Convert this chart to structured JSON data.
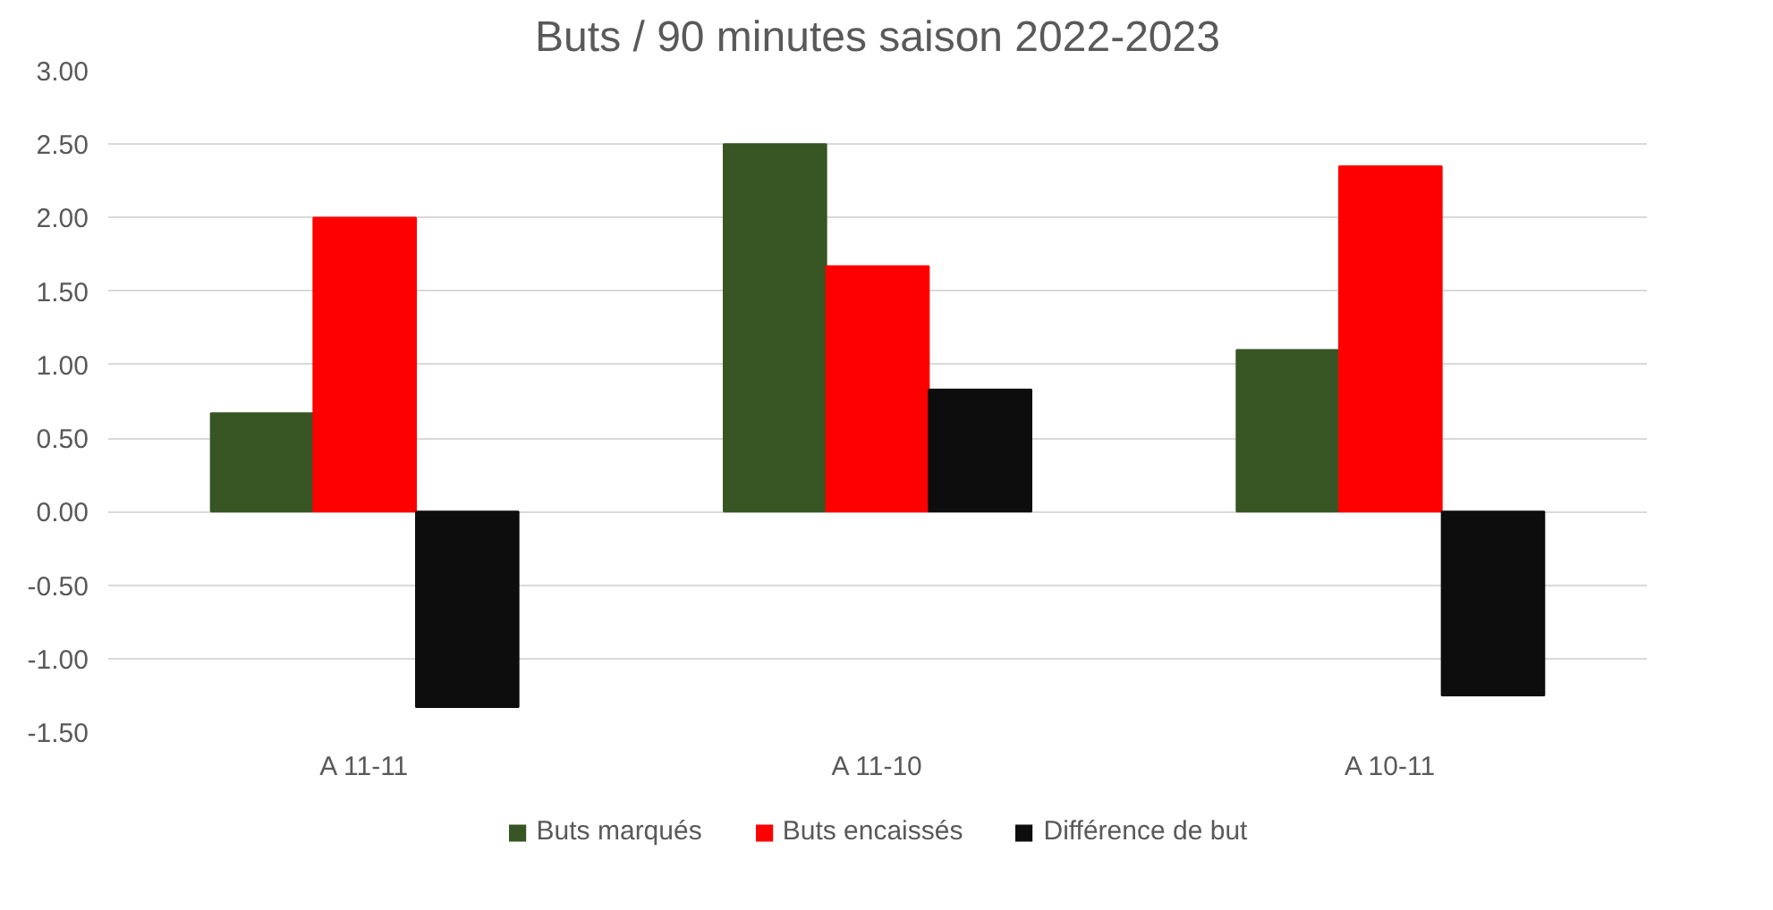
{
  "chart_data": {
    "type": "bar",
    "title": "Buts / 90 minutes saison 2022-2023",
    "categories": [
      "A 11-11",
      "A 11-10",
      "A 10-11"
    ],
    "series": [
      {
        "name": "Buts marqués",
        "color": "#375623",
        "values": [
          0.67,
          2.5,
          1.1
        ]
      },
      {
        "name": "Buts encaissés",
        "color": "#ff0000",
        "values": [
          2.0,
          1.67,
          2.35
        ]
      },
      {
        "name": "Différence de but",
        "color": "#0d0d0d",
        "values": [
          -1.33,
          0.83,
          -1.25
        ]
      }
    ],
    "ylim": [
      -1.5,
      3.0
    ],
    "yticks": [
      {
        "value": -1.5,
        "label": "-1.50"
      },
      {
        "value": -1.0,
        "label": "-1.00"
      },
      {
        "value": -0.5,
        "label": "-0.50"
      },
      {
        "value": 0,
        "label": "0.00"
      },
      {
        "value": 0.5,
        "label": "0.50"
      },
      {
        "value": 1.0,
        "label": "1.00"
      },
      {
        "value": 1.5,
        "label": "1.50"
      },
      {
        "value": 2.0,
        "label": "2.00"
      },
      {
        "value": 2.5,
        "label": "2.50"
      },
      {
        "value": 3.0,
        "label": "3.00"
      }
    ],
    "grid": "y",
    "legend": "bottom"
  }
}
